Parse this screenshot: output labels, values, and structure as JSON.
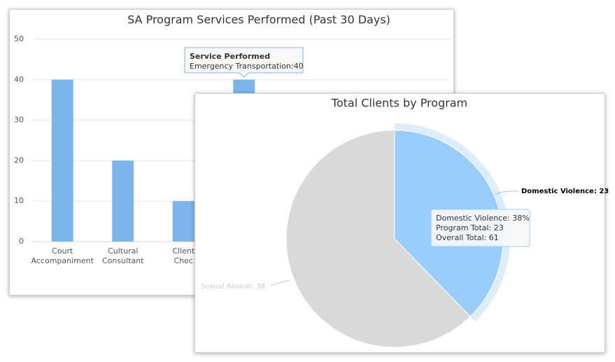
{
  "chart_data": [
    {
      "type": "bar",
      "title": "SA Program Services Performed (Past 30 Days)",
      "categories": [
        "Court Accompaniment",
        "Cultural Consultant",
        "Client Chec",
        "Emergency Transportation"
      ],
      "values": [
        40,
        20,
        10,
        40
      ],
      "color": "#7cb5ec",
      "ylim": [
        0,
        50
      ],
      "yticks": [
        0,
        10,
        20,
        30,
        40,
        50
      ],
      "grid": true,
      "tooltip": {
        "title": "Service Performed",
        "text": "Emergency Transportation:40"
      }
    },
    {
      "type": "pie",
      "title": "Total Clients by Program",
      "categories": [
        "Domestic Violence",
        "Sexual Assault"
      ],
      "values": [
        23,
        38
      ],
      "colors": [
        "#99ccfb",
        "#d9d9d9"
      ],
      "value_labels": [
        "Domestic Violence: 23",
        "Sexual Assault: 38"
      ],
      "tooltip": [
        "Domestic Violence: 38%",
        "Program Total: 23",
        "Overall Total: 61"
      ]
    }
  ]
}
